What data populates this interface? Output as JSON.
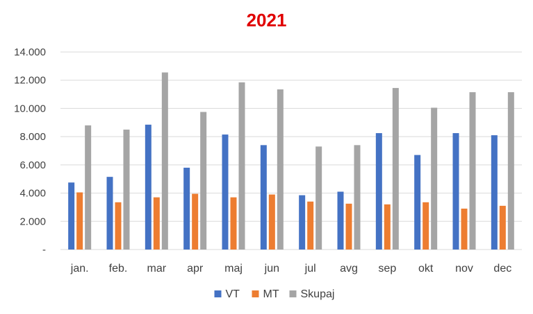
{
  "chart_data": {
    "type": "bar",
    "title": "2021",
    "categories": [
      "jan.",
      "feb.",
      "mar",
      "apr",
      "maj",
      "jun",
      "jul",
      "avg",
      "sep",
      "okt",
      "nov",
      "dec"
    ],
    "series": [
      {
        "name": "VT",
        "color": "#4472c4",
        "values": [
          4750,
          5150,
          8850,
          5800,
          8150,
          7400,
          3850,
          4100,
          8250,
          6700,
          8250,
          8100
        ]
      },
      {
        "name": "MT",
        "color": "#ed7d31",
        "values": [
          4050,
          3350,
          3700,
          3950,
          3700,
          3900,
          3400,
          3250,
          3200,
          3350,
          2900,
          3100
        ]
      },
      {
        "name": "Skupaj",
        "color": "#a5a5a5",
        "values": [
          8800,
          8500,
          12550,
          9750,
          11850,
          11350,
          7300,
          7400,
          11450,
          10050,
          11150,
          11150
        ]
      }
    ],
    "ylim": [
      0,
      14000
    ],
    "yticks": [
      0,
      2000,
      4000,
      6000,
      8000,
      10000,
      12000,
      14000
    ],
    "ytick_labels": [
      "-",
      "2.000",
      "4.000",
      "6.000",
      "8.000",
      "10.000",
      "12.000",
      "14.000"
    ],
    "grid": true,
    "legend": "bottom"
  }
}
